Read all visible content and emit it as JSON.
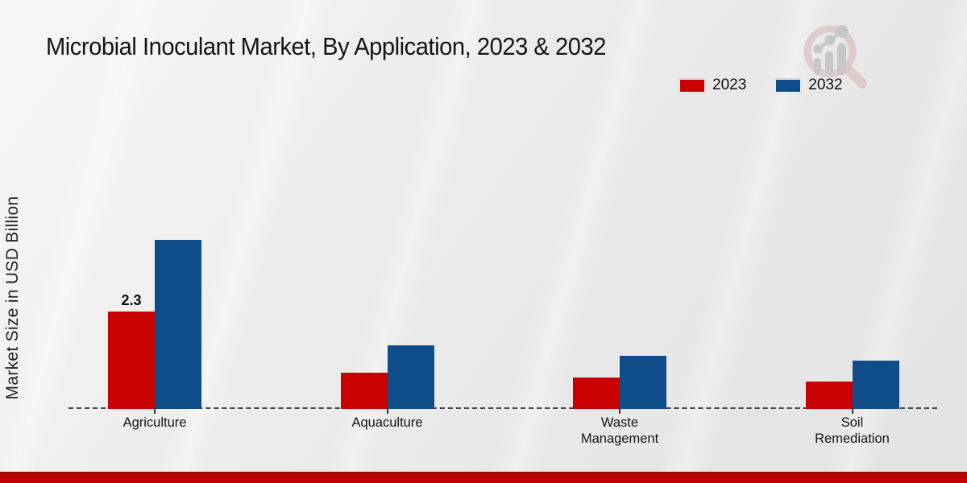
{
  "page": {
    "title": "Microbial Inoculant Market, By Application, 2023 & 2032",
    "ylabel": "Market Size in USD Billion"
  },
  "legend": {
    "items": [
      {
        "label": "2023",
        "color": "#c80000"
      },
      {
        "label": "2032",
        "color": "#0f4c8a"
      }
    ]
  },
  "chart_data": {
    "type": "bar",
    "title": "Microbial Inoculant Market, By Application, 2023 & 2032",
    "xlabel": "",
    "ylabel": "Market Size in USD Billion",
    "categories": [
      "Agriculture",
      "Aquaculture",
      "Waste Management",
      "Soil Remediation"
    ],
    "series": [
      {
        "name": "2023",
        "color": "#c80000",
        "values": [
          2.3,
          0.85,
          0.75,
          0.65
        ],
        "value_labels": [
          "2.3",
          "",
          "",
          ""
        ]
      },
      {
        "name": "2032",
        "color": "#0f4c8a",
        "values": [
          4.0,
          1.5,
          1.25,
          1.15
        ],
        "value_labels": [
          "",
          "",
          "",
          ""
        ]
      }
    ],
    "ylim": [
      0,
      4.5
    ],
    "grid": false,
    "axis_line": "dashed-baseline",
    "legend_position": "top-right",
    "colors": {
      "accent_red": "#c80000",
      "accent_blue": "#0f4c8a",
      "footer": "#c00000",
      "background": "#ebebeb"
    }
  },
  "branding": {
    "watermark": "magnifier-bar-chart-logo"
  }
}
